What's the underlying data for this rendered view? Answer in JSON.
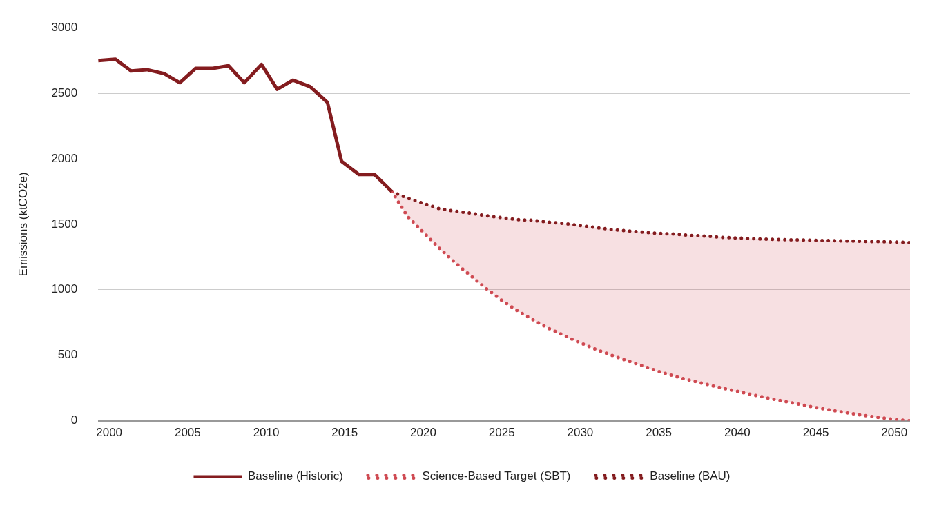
{
  "chart_data": {
    "type": "line",
    "ylabel": "Emissions (ktCO2e)",
    "xlim": [
      1999.3,
      2051
    ],
    "xticks": [
      2000,
      2005,
      2010,
      2015,
      2020,
      2025,
      2030,
      2035,
      2040,
      2045,
      2050
    ],
    "ylim": [
      0,
      3000
    ],
    "yticks": [
      0,
      500,
      1000,
      1500,
      2000,
      2500,
      3000
    ],
    "grid": "y",
    "legend": "bottom",
    "marker": "none",
    "series": [
      {
        "name": "Baseline (Historic)",
        "color": "#841c1f",
        "line_style": "solid",
        "x": [
          1999.3,
          2000.4,
          2001.4,
          2002.4,
          2003.5,
          2004.5,
          2005.5,
          2006.6,
          2007.6,
          2008.6,
          2009.7,
          2010.7,
          2011.7,
          2012.8,
          2013.9,
          2014.8,
          2015.9,
          2016.9,
          2018
        ],
        "values": [
          2750,
          2760,
          2670,
          2680,
          2650,
          2580,
          2690,
          2690,
          2710,
          2580,
          2720,
          2530,
          2600,
          2550,
          2430,
          1980,
          1880,
          1880,
          1750
        ]
      },
      {
        "name": "Science-Based Target (SBT)",
        "color": "#cf4a52",
        "line_style": "dotted",
        "x": [
          2018,
          2019,
          2020,
          2021,
          2022,
          2023,
          2024,
          2025,
          2026,
          2027,
          2028,
          2029,
          2030,
          2031,
          2032,
          2033,
          2034,
          2035,
          2036,
          2037,
          2038,
          2039,
          2040,
          2041,
          2042,
          2043,
          2044,
          2045,
          2046,
          2047,
          2048,
          2049,
          2050,
          2051
        ],
        "values": [
          1750,
          1560,
          1440,
          1320,
          1210,
          1110,
          1010,
          920,
          840,
          770,
          705,
          650,
          595,
          545,
          500,
          458,
          418,
          376,
          340,
          308,
          280,
          250,
          225,
          198,
          172,
          148,
          125,
          100,
          80,
          60,
          42,
          25,
          10,
          0
        ],
        "lower": [
          1750,
          1560,
          1440,
          1320,
          1210,
          1110,
          1010,
          920,
          840,
          770,
          705,
          650,
          595,
          545,
          500,
          458,
          418,
          376,
          340,
          308,
          280,
          250,
          225,
          198,
          172,
          148,
          125,
          100,
          80,
          60,
          42,
          25,
          10,
          0
        ],
        "upper": [
          1750,
          1700,
          1660,
          1620,
          1600,
          1585,
          1565,
          1550,
          1535,
          1530,
          1515,
          1505,
          1490,
          1475,
          1460,
          1450,
          1440,
          1430,
          1425,
          1415,
          1410,
          1400,
          1395,
          1390,
          1385,
          1382,
          1380,
          1377,
          1375,
          1372,
          1370,
          1367,
          1365,
          1360
        ]
      },
      {
        "name": "Baseline (BAU)",
        "color": "#841c1f",
        "line_style": "dotted",
        "x": [
          2018,
          2019,
          2020,
          2021,
          2022,
          2023,
          2024,
          2025,
          2026,
          2027,
          2028,
          2029,
          2030,
          2031,
          2032,
          2033,
          2034,
          2035,
          2036,
          2037,
          2038,
          2039,
          2040,
          2041,
          2042,
          2043,
          2044,
          2045,
          2046,
          2047,
          2048,
          2049,
          2050,
          2051
        ],
        "values": [
          1750,
          1700,
          1660,
          1620,
          1600,
          1585,
          1565,
          1550,
          1535,
          1530,
          1515,
          1505,
          1490,
          1475,
          1460,
          1450,
          1440,
          1430,
          1425,
          1415,
          1410,
          1400,
          1395,
          1390,
          1385,
          1382,
          1380,
          1377,
          1375,
          1372,
          1370,
          1367,
          1365,
          1360
        ]
      }
    ]
  }
}
